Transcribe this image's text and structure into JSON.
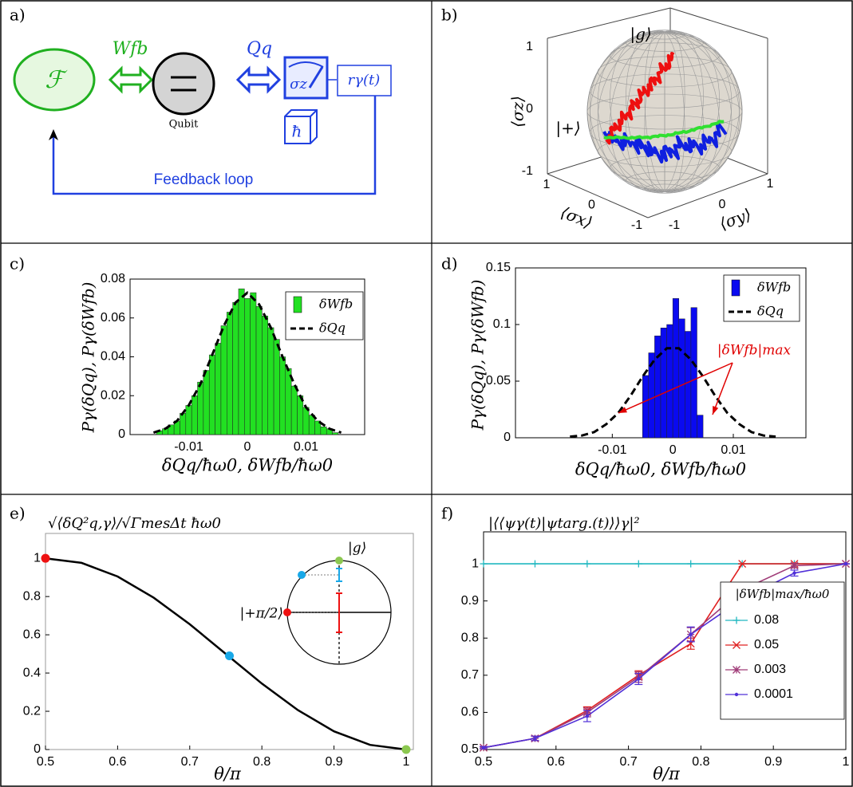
{
  "panel_labels": [
    "a)",
    "b)",
    "c)",
    "d)",
    "e)",
    "f)"
  ],
  "diagram": {
    "feedback": "ℱ",
    "work": "Wfb",
    "qubit": "Qubit",
    "heat": "Qq",
    "meter": "σz",
    "record": "rγ(t)",
    "hbar": "ħ",
    "loop": "Feedback loop"
  },
  "chart_data": [
    {
      "type": "bloch",
      "xlabel": "⟨σx⟩",
      "ylabel": "⟨σy⟩",
      "zlabel": "⟨σz⟩",
      "xlim": [
        -1,
        1
      ],
      "ylim": [
        -1,
        1
      ],
      "zlim": [
        -1,
        1
      ],
      "xticks": [
        1,
        0,
        -1
      ],
      "yticks": [
        -1,
        0,
        1
      ],
      "zticks": [
        1,
        0,
        -1
      ],
      "annotations": [
        "|g⟩",
        "|+⟩"
      ]
    },
    {
      "type": "histogram",
      "xlabel": "δQq/ħω0, δWfb/ħω0",
      "ylabel": "Pγ(δQq), Pγ(δWfb)",
      "xlim": [
        -0.02,
        0.02
      ],
      "ylim": [
        0,
        0.08
      ],
      "xticks": [
        -0.01,
        0,
        0.01
      ],
      "yticks": [
        0,
        0.02,
        0.04,
        0.06,
        0.08
      ],
      "series": [
        {
          "name": "δWfb",
          "color": "#22e022",
          "bins": [
            -0.0155,
            -0.0145,
            -0.0135,
            -0.0125,
            -0.0115,
            -0.0105,
            -0.0095,
            -0.0085,
            -0.0075,
            -0.0065,
            -0.0055,
            -0.0045,
            -0.0035,
            -0.0025,
            -0.0015,
            -0.0005,
            0.0005,
            0.0015,
            0.0025,
            0.0035,
            0.0045,
            0.0055,
            0.0065,
            0.0075,
            0.0085,
            0.0095,
            0.0105,
            0.0115,
            0.0125,
            0.0135,
            0.0145,
            0.0155
          ],
          "values": [
            0.002,
            0.003,
            0.005,
            0.007,
            0.011,
            0.015,
            0.02,
            0.027,
            0.033,
            0.041,
            0.047,
            0.056,
            0.063,
            0.068,
            0.075,
            0.07,
            0.073,
            0.066,
            0.061,
            0.055,
            0.049,
            0.04,
            0.034,
            0.025,
            0.02,
            0.014,
            0.01,
            0.007,
            0.004,
            0.003,
            0.001
          ]
        },
        {
          "name": "δQq",
          "color": "#000000",
          "x": [
            -0.016,
            -0.014,
            -0.012,
            -0.01,
            -0.008,
            -0.006,
            -0.004,
            -0.002,
            0,
            0.002,
            0.004,
            0.006,
            0.008,
            0.01,
            0.012,
            0.014,
            0.016
          ],
          "values": [
            0.001,
            0.003,
            0.007,
            0.015,
            0.026,
            0.041,
            0.056,
            0.068,
            0.073,
            0.067,
            0.055,
            0.04,
            0.026,
            0.014,
            0.007,
            0.003,
            0.001
          ]
        }
      ]
    },
    {
      "type": "histogram",
      "xlabel": "δQq/ħω0, δWfb/ħω0",
      "ylabel": "Pγ(δQq), Pγ(δWfb)",
      "xlim": [
        -0.026,
        0.022
      ],
      "ylim": [
        0,
        0.15
      ],
      "xticks": [
        -0.01,
        0,
        0.01
      ],
      "yticks": [
        0,
        0.05,
        0.1,
        0.15
      ],
      "annotation": "|δWfb|max",
      "annotation_color": "#e00000",
      "series": [
        {
          "name": "δWfb",
          "color": "#0a0af0",
          "bins": [
            -0.005,
            -0.004,
            -0.003,
            -0.002,
            -0.001,
            0,
            0.001,
            0.002,
            0.003,
            0.004,
            0.005
          ],
          "values": [
            0.055,
            0.075,
            0.09,
            0.097,
            0.1,
            0.123,
            0.105,
            0.094,
            0.115,
            0.02
          ]
        },
        {
          "name": "δQq",
          "color": "#000000",
          "x": [
            -0.017,
            -0.015,
            -0.013,
            -0.011,
            -0.009,
            -0.007,
            -0.005,
            -0.003,
            -0.001,
            0.001,
            0.003,
            0.005,
            0.007,
            0.009,
            0.011,
            0.013,
            0.015,
            0.017
          ],
          "values": [
            0.001,
            0.002,
            0.005,
            0.012,
            0.022,
            0.037,
            0.054,
            0.069,
            0.079,
            0.079,
            0.069,
            0.054,
            0.037,
            0.022,
            0.012,
            0.005,
            0.002,
            0.001
          ]
        }
      ]
    },
    {
      "type": "line",
      "title": "√⟨δQ²q,γ⟩/√ΓmesΔt ħω0",
      "xlabel": "θ/π",
      "xlim": [
        0.5,
        1.01
      ],
      "ylim": [
        0,
        1.13
      ],
      "xticks": [
        0.5,
        0.6,
        0.7,
        0.8,
        0.9,
        1
      ],
      "yticks": [
        0,
        0.2,
        0.4,
        0.6,
        0.8,
        1
      ],
      "series": [
        {
          "color": "#000000",
          "x": [
            0.5,
            0.55,
            0.6,
            0.65,
            0.7,
            0.75,
            0.8,
            0.85,
            0.9,
            0.95,
            1
          ],
          "values": [
            1,
            0.976,
            0.905,
            0.794,
            0.655,
            0.5,
            0.345,
            0.206,
            0.095,
            0.024,
            0
          ]
        }
      ],
      "markers": {
        "x": [
          0.5,
          0.755,
          1
        ],
        "values": [
          1,
          0.49,
          0
        ],
        "colors": [
          "#ee1111",
          "#18a8e8",
          "#8cc850"
        ]
      },
      "inset_labels": [
        "|g⟩",
        "|+π/2⟩"
      ]
    },
    {
      "type": "line",
      "title": "|⟨⟨ψγ(t)|ψtarg.(t)⟩⟩γ|²",
      "xlabel": "θ/π",
      "legend_title": "|δWfb|max/ħω0",
      "xlim": [
        0.5,
        1
      ],
      "ylim": [
        0.5,
        1.086
      ],
      "xticks": [
        0.5,
        0.6,
        0.7,
        0.8,
        0.9,
        1
      ],
      "yticks": [
        0.5,
        0.6,
        0.7,
        0.8,
        0.9,
        1
      ],
      "series": [
        {
          "name": "0.08",
          "color": "#20b8c0",
          "marker": "+",
          "x": [
            0.5,
            0.571,
            0.643,
            0.714,
            0.786,
            0.857,
            0.929,
            1
          ],
          "values": [
            1,
            1,
            1,
            1,
            1,
            1,
            1,
            1
          ]
        },
        {
          "name": "0.05",
          "color": "#e02020",
          "marker": "x",
          "x": [
            0.5,
            0.571,
            0.643,
            0.714,
            0.786,
            0.857,
            0.929,
            1
          ],
          "values": [
            0.505,
            0.53,
            0.605,
            0.7,
            0.785,
            1,
            1,
            1
          ],
          "errors": [
            0.003,
            0.006,
            0.01,
            0.012,
            0.015,
            0,
            0,
            0
          ]
        },
        {
          "name": "0.003",
          "color": "#a03c78",
          "marker": "*",
          "x": [
            0.5,
            0.571,
            0.643,
            0.714,
            0.786,
            0.857,
            0.929,
            1
          ],
          "values": [
            0.505,
            0.53,
            0.6,
            0.695,
            0.81,
            0.93,
            0.995,
            1
          ],
          "errors": [
            0.003,
            0.006,
            0.012,
            0.014,
            0.018,
            0.01,
            0.006,
            0
          ]
        },
        {
          "name": "0.0001",
          "color": "#5030d8",
          "marker": ".",
          "x": [
            0.5,
            0.571,
            0.643,
            0.714,
            0.786,
            0.857,
            0.929,
            1
          ],
          "values": [
            0.505,
            0.53,
            0.59,
            0.69,
            0.81,
            0.905,
            0.975,
            1
          ],
          "errors": [
            0.003,
            0.006,
            0.015,
            0.015,
            0.02,
            0.015,
            0.008,
            0
          ]
        }
      ]
    }
  ]
}
